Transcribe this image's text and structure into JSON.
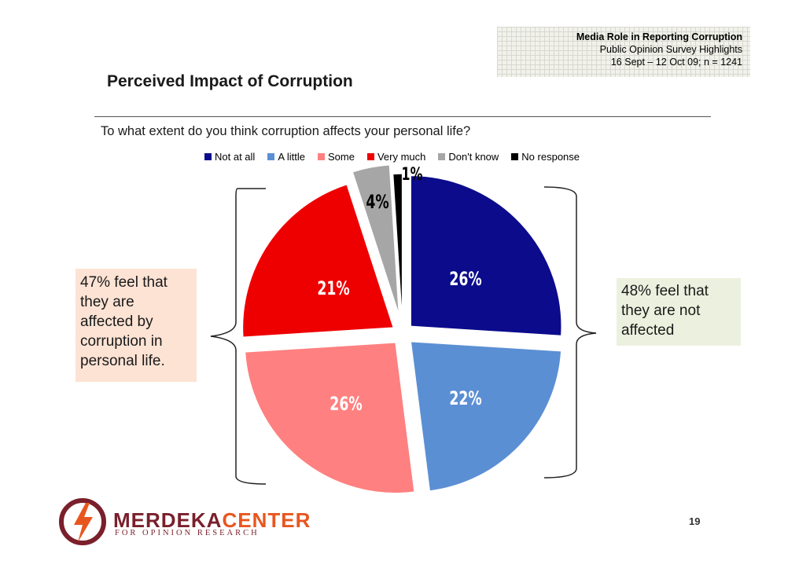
{
  "header": {
    "line1": "Media Role in Reporting Corruption",
    "line2": "Public Opinion Survey Highlights",
    "line3": "16 Sept – 12 Oct 09; n = 1241"
  },
  "slide_title": "Perceived Impact of Corruption",
  "question": "To what extent do you think corruption affects your personal life?",
  "callouts": {
    "left": [
      "47% feel that",
      "they are",
      "affected by",
      "corruption in",
      "personal life."
    ],
    "right": [
      "48% feel that",
      "they are not",
      "affected"
    ]
  },
  "logo": {
    "name_part1": "MERDEKA",
    "name_part2": "CENTER",
    "tagline": "FOR OPINION RESEARCH"
  },
  "page_number": "19",
  "colors": {
    "not_at_all": "#0b0b8c",
    "a_little": "#5b8fd4",
    "some": "#ff8080",
    "very_much": "#ee0000",
    "dont_know": "#a6a6a6",
    "no_response": "#000000"
  },
  "chart_data": {
    "type": "pie",
    "title": "To what extent do you think corruption affects your personal life?",
    "legend_position": "top",
    "categories": [
      "Not at all",
      "A little",
      "Some",
      "Very much",
      "Don't know",
      "No response"
    ],
    "values": [
      26,
      22,
      26,
      21,
      4,
      1
    ],
    "labels": [
      "26%",
      "22%",
      "26%",
      "21%",
      "4%",
      "1%"
    ],
    "exploded": true
  }
}
